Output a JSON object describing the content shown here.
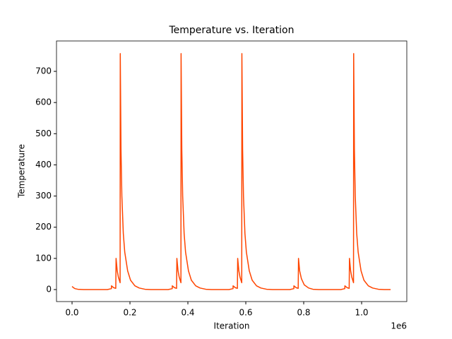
{
  "chart_data": {
    "type": "line",
    "title": "Temperature vs. Iteration",
    "x_label": "Iteration",
    "y_label": "Temperature",
    "x_offset_label": "1e6",
    "color": "#ff4500",
    "x": [
      0,
      0.005,
      0.01,
      0.02,
      0.04,
      0.122,
      0.136,
      0.1361,
      0.144,
      0.151,
      0.152,
      0.156,
      0.16,
      0.166,
      0.1665,
      0.169,
      0.172,
      0.177,
      0.182,
      0.192,
      0.202,
      0.217,
      0.232,
      0.252,
      0.272,
      0.332,
      0.346,
      0.3461,
      0.354,
      0.361,
      0.362,
      0.366,
      0.37,
      0.376,
      0.3765,
      0.379,
      0.382,
      0.387,
      0.392,
      0.402,
      0.412,
      0.427,
      0.442,
      0.462,
      0.482,
      0.542,
      0.556,
      0.5561,
      0.564,
      0.571,
      0.572,
      0.576,
      0.58,
      0.586,
      0.5865,
      0.589,
      0.592,
      0.597,
      0.602,
      0.612,
      0.622,
      0.637,
      0.652,
      0.672,
      0.692,
      0.752,
      0.766,
      0.7661,
      0.774,
      0.781,
      0.782,
      0.786,
      0.792,
      0.802,
      0.817,
      0.832,
      0.852,
      0.928,
      0.942,
      0.9421,
      0.95,
      0.957,
      0.958,
      0.962,
      0.966,
      0.972,
      0.9725,
      0.975,
      0.978,
      0.983,
      0.988,
      0.998,
      1.008,
      1.023,
      1.038,
      1.058,
      1.078,
      1.1
    ],
    "values": [
      10,
      6,
      3,
      1,
      0,
      0,
      3,
      12,
      6,
      4,
      100,
      60,
      40,
      22,
      757,
      450,
      300,
      180,
      120,
      60,
      30,
      12,
      5,
      1,
      0,
      0,
      3,
      12,
      6,
      4,
      100,
      60,
      40,
      22,
      757,
      450,
      300,
      180,
      120,
      60,
      30,
      12,
      5,
      1,
      0,
      0,
      3,
      12,
      6,
      4,
      100,
      60,
      40,
      22,
      757,
      450,
      300,
      180,
      120,
      60,
      30,
      12,
      5,
      1,
      0,
      0,
      3,
      12,
      6,
      4,
      100,
      60,
      35,
      15,
      5,
      1,
      0,
      0,
      3,
      12,
      6,
      4,
      100,
      60,
      40,
      22,
      757,
      450,
      300,
      180,
      120,
      60,
      30,
      12,
      5,
      1,
      0,
      0
    ],
    "xlim": [
      -0.0537,
      1.156
    ],
    "ylim": [
      -38.5,
      797.5
    ],
    "xticks": [
      {
        "value": 0,
        "label": "0.0"
      },
      0.2,
      0.4,
      0.6,
      0.8,
      {
        "value": 1,
        "label": "1.0"
      }
    ],
    "yticks": [
      0,
      100,
      200,
      300,
      400,
      500,
      600,
      700
    ]
  }
}
